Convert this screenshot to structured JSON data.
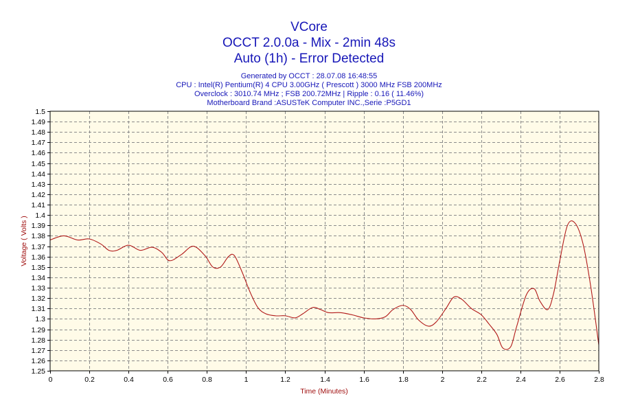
{
  "header": {
    "title_lines": [
      "VCore",
      "OCCT 2.0.0a - Mix - 2min 48s",
      "Auto (1h) - Error Detected"
    ],
    "info_lines": [
      "Generated by OCCT : 28.07.08 16:48:55",
      "CPU : Intel(R) Pentium(R) 4 CPU 3.00GHz ( Prescott ) 3000 MHz FSB 200MHz",
      "Overclock : 3010.74 MHz ; FSB 200.72MHz | Ripple : 0.16 ( 11.46%)",
      "Motherboard Brand :ASUSTeK Computer INC.,Serie :P5GD1"
    ]
  },
  "colors": {
    "title": "#1717b8",
    "plot_background": "#fffbe8",
    "line": "#b01818",
    "axis_title": "#a01010",
    "grid": "#8a8a8a"
  },
  "chart_data": {
    "type": "line",
    "xlabel": "Time (Minutes)",
    "ylabel": "Voltage ( Volts )",
    "xlim": [
      0,
      2.8
    ],
    "ylim": [
      1.25,
      1.5
    ],
    "x_ticks": [
      "0",
      "0.2",
      "0.4",
      "0.6",
      "0.8",
      "1",
      "1.2",
      "1.4",
      "1.6",
      "1.8",
      "2",
      "2.2",
      "2.4",
      "2.6",
      "2.8"
    ],
    "y_ticks": [
      "1.25",
      "1.26",
      "1.27",
      "1.28",
      "1.29",
      "1.3",
      "1.31",
      "1.32",
      "1.33",
      "1.34",
      "1.35",
      "1.36",
      "1.37",
      "1.38",
      "1.39",
      "1.4",
      "1.41",
      "1.42",
      "1.43",
      "1.44",
      "1.45",
      "1.46",
      "1.47",
      "1.48",
      "1.49",
      "1.5"
    ],
    "grid": true,
    "series": [
      {
        "x": [
          0.0,
          0.07,
          0.14,
          0.2,
          0.26,
          0.3,
          0.34,
          0.4,
          0.46,
          0.52,
          0.57,
          0.61,
          0.67,
          0.73,
          0.79,
          0.83,
          0.87,
          0.91,
          0.94,
          0.98,
          1.02,
          1.06,
          1.1,
          1.15,
          1.2,
          1.25,
          1.29,
          1.34,
          1.38,
          1.42,
          1.48,
          1.54,
          1.6,
          1.66,
          1.71,
          1.75,
          1.8,
          1.84,
          1.88,
          1.93,
          1.97,
          2.02,
          2.06,
          2.1,
          2.15,
          2.2,
          2.24,
          2.28,
          2.31,
          2.35,
          2.38,
          2.43,
          2.47,
          2.5,
          2.54,
          2.57,
          2.6,
          2.64,
          2.68,
          2.72,
          2.76,
          2.8
        ],
        "y": [
          1.376,
          1.38,
          1.376,
          1.377,
          1.372,
          1.366,
          1.366,
          1.371,
          1.366,
          1.369,
          1.364,
          1.356,
          1.362,
          1.37,
          1.361,
          1.35,
          1.35,
          1.36,
          1.361,
          1.345,
          1.326,
          1.311,
          1.305,
          1.303,
          1.303,
          1.301,
          1.305,
          1.311,
          1.309,
          1.306,
          1.306,
          1.304,
          1.301,
          1.3,
          1.302,
          1.309,
          1.313,
          1.309,
          1.299,
          1.293,
          1.297,
          1.31,
          1.321,
          1.319,
          1.31,
          1.304,
          1.295,
          1.285,
          1.272,
          1.273,
          1.292,
          1.323,
          1.329,
          1.317,
          1.309,
          1.325,
          1.355,
          1.39,
          1.392,
          1.372,
          1.33,
          1.275
        ]
      }
    ]
  }
}
